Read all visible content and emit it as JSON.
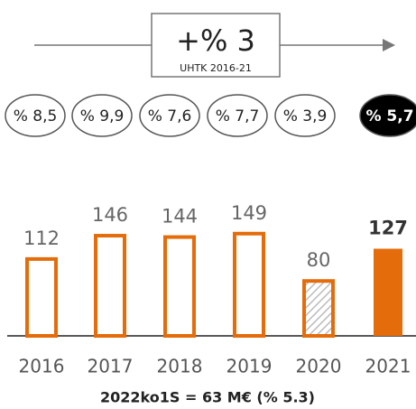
{
  "chart_data": {
    "type": "bar",
    "headline": "+% 3",
    "headline_note": "UHTK 2016-21",
    "annotations": [
      "% 8,5",
      "% 9,9",
      "% 7,6",
      "% 7,7",
      "% 3,9",
      "% 5,7"
    ],
    "categories": [
      "2016",
      "2017",
      "2018",
      "2019",
      "2020",
      "2021"
    ],
    "values": [
      112,
      146,
      144,
      149,
      80,
      127
    ],
    "color": "#e46c0a",
    "footer": "2022ko1S = 63 M€ (% 5.3)"
  }
}
